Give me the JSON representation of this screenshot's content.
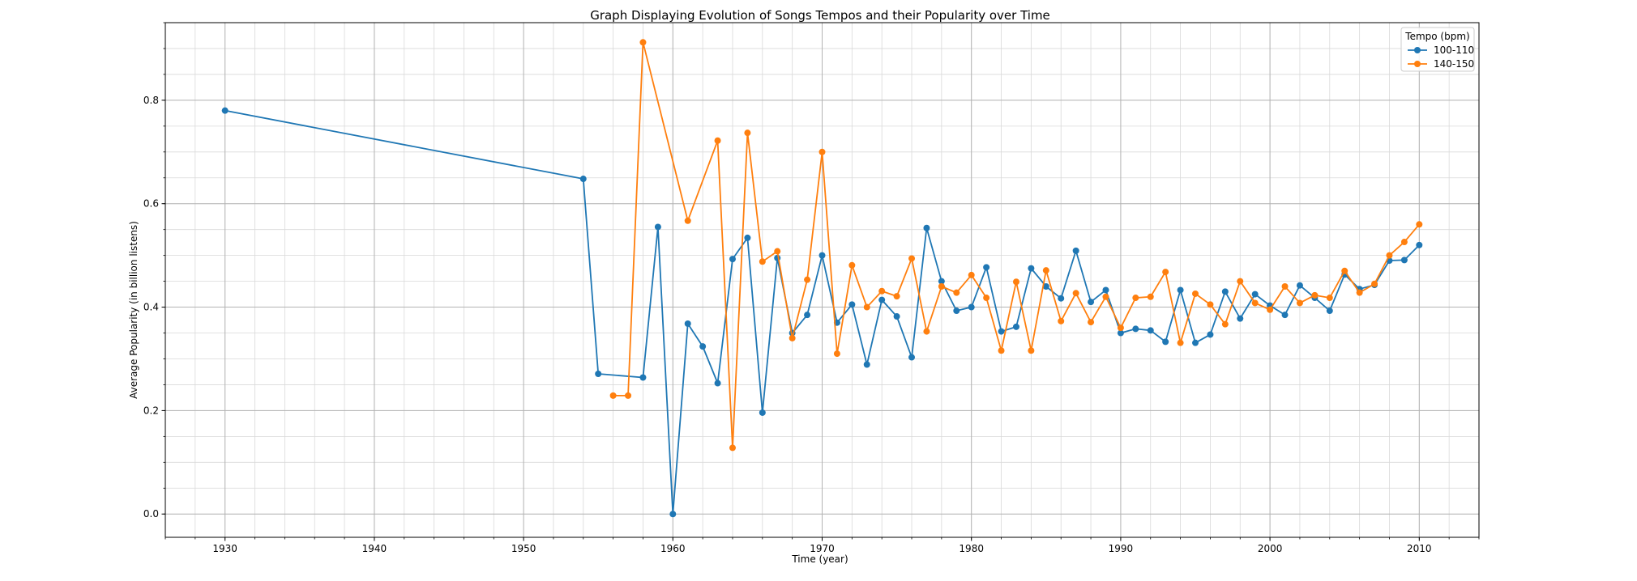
{
  "chart_data": {
    "type": "line",
    "title": "Graph Displaying Evolution of Songs Tempos and their Popularity over Time",
    "xlabel": "Time (year)",
    "ylabel": "Average Popularity (in billion listens)",
    "xlim": [
      1926,
      2014
    ],
    "ylim": [
      -0.045,
      0.95
    ],
    "xticks": [
      1930,
      1940,
      1950,
      1960,
      1970,
      1980,
      1990,
      2000,
      2010
    ],
    "yticks": [
      0.0,
      0.2,
      0.4,
      0.6,
      0.8
    ],
    "xminor_step": 2,
    "yminor_step": 0.05,
    "grid": true,
    "legend": {
      "title": "Tempo (bpm)",
      "position": "top-right"
    },
    "series": [
      {
        "name": "100-110",
        "color": "#1f77b4",
        "points": [
          [
            1930,
            0.78
          ],
          [
            1954,
            0.648
          ],
          [
            1955,
            0.271
          ],
          [
            1958,
            0.264
          ],
          [
            1959,
            0.555
          ],
          [
            1960,
            0.0
          ],
          [
            1961,
            0.368
          ],
          [
            1962,
            0.324
          ],
          [
            1963,
            0.253
          ],
          [
            1964,
            0.493
          ],
          [
            1965,
            0.534
          ],
          [
            1966,
            0.196
          ],
          [
            1967,
            0.495
          ],
          [
            1968,
            0.35
          ],
          [
            1969,
            0.385
          ],
          [
            1970,
            0.5
          ],
          [
            1971,
            0.37
          ],
          [
            1972,
            0.405
          ],
          [
            1973,
            0.289
          ],
          [
            1974,
            0.414
          ],
          [
            1975,
            0.382
          ],
          [
            1976,
            0.303
          ],
          [
            1977,
            0.553
          ],
          [
            1978,
            0.45
          ],
          [
            1979,
            0.393
          ],
          [
            1980,
            0.4
          ],
          [
            1981,
            0.477
          ],
          [
            1982,
            0.353
          ],
          [
            1983,
            0.362
          ],
          [
            1984,
            0.475
          ],
          [
            1985,
            0.44
          ],
          [
            1986,
            0.417
          ],
          [
            1987,
            0.509
          ],
          [
            1988,
            0.41
          ],
          [
            1989,
            0.433
          ],
          [
            1990,
            0.35
          ],
          [
            1991,
            0.358
          ],
          [
            1992,
            0.355
          ],
          [
            1993,
            0.333
          ],
          [
            1994,
            0.433
          ],
          [
            1995,
            0.331
          ],
          [
            1996,
            0.347
          ],
          [
            1997,
            0.43
          ],
          [
            1998,
            0.378
          ],
          [
            1999,
            0.425
          ],
          [
            2000,
            0.403
          ],
          [
            2001,
            0.385
          ],
          [
            2002,
            0.442
          ],
          [
            2003,
            0.418
          ],
          [
            2004,
            0.393
          ],
          [
            2005,
            0.463
          ],
          [
            2006,
            0.435
          ],
          [
            2007,
            0.443
          ],
          [
            2008,
            0.49
          ],
          [
            2009,
            0.491
          ],
          [
            2010,
            0.52
          ]
        ]
      },
      {
        "name": "140-150",
        "color": "#ff7f0e",
        "points": [
          [
            1956,
            0.229
          ],
          [
            1957,
            0.229
          ],
          [
            1958,
            0.912
          ],
          [
            1961,
            0.567
          ],
          [
            1963,
            0.722
          ],
          [
            1964,
            0.128
          ],
          [
            1965,
            0.737
          ],
          [
            1966,
            0.488
          ],
          [
            1967,
            0.508
          ],
          [
            1968,
            0.34
          ],
          [
            1969,
            0.453
          ],
          [
            1970,
            0.7
          ],
          [
            1971,
            0.31
          ],
          [
            1972,
            0.481
          ],
          [
            1973,
            0.4
          ],
          [
            1974,
            0.431
          ],
          [
            1975,
            0.421
          ],
          [
            1976,
            0.494
          ],
          [
            1977,
            0.353
          ],
          [
            1978,
            0.44
          ],
          [
            1979,
            0.428
          ],
          [
            1980,
            0.462
          ],
          [
            1981,
            0.418
          ],
          [
            1982,
            0.316
          ],
          [
            1983,
            0.449
          ],
          [
            1984,
            0.316
          ],
          [
            1985,
            0.471
          ],
          [
            1986,
            0.373
          ],
          [
            1987,
            0.427
          ],
          [
            1988,
            0.371
          ],
          [
            1989,
            0.42
          ],
          [
            1990,
            0.36
          ],
          [
            1991,
            0.418
          ],
          [
            1992,
            0.42
          ],
          [
            1993,
            0.468
          ],
          [
            1994,
            0.331
          ],
          [
            1995,
            0.426
          ],
          [
            1996,
            0.405
          ],
          [
            1997,
            0.367
          ],
          [
            1998,
            0.45
          ],
          [
            1999,
            0.408
          ],
          [
            2000,
            0.395
          ],
          [
            2001,
            0.44
          ],
          [
            2002,
            0.408
          ],
          [
            2003,
            0.423
          ],
          [
            2004,
            0.418
          ],
          [
            2005,
            0.47
          ],
          [
            2006,
            0.428
          ],
          [
            2007,
            0.445
          ],
          [
            2008,
            0.5
          ],
          [
            2009,
            0.526
          ],
          [
            2010,
            0.56
          ]
        ]
      }
    ]
  }
}
